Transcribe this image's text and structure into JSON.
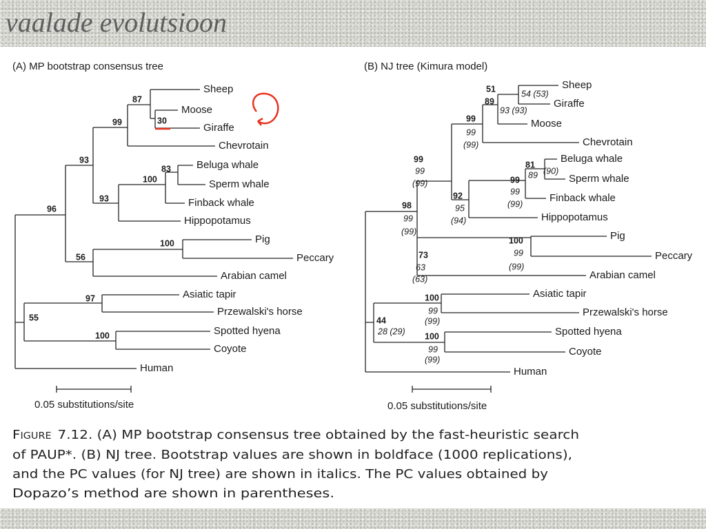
{
  "title": "vaalade evolutsioon",
  "panels": [
    {
      "heading": "(A) MP bootstrap consensus tree",
      "taxa": [
        "Sheep",
        "Moose",
        "Giraffe",
        "Chevrotain",
        "Beluga whale",
        "Sperm whale",
        "Finback whale",
        "Hippopotamus",
        "Pig",
        "Peccary",
        "Arabian camel",
        "Asiatic tapir",
        "Przewalski's horse",
        "Spotted hyena",
        "Coyote",
        "Human"
      ],
      "support": [
        "87",
        "30",
        "99",
        "93",
        "83",
        "100",
        "93",
        "96",
        "100",
        "56",
        "97",
        "100",
        "55"
      ],
      "scale": "0.05 substitutions/site"
    },
    {
      "heading": "(B) NJ tree (Kimura model)",
      "taxa": [
        "Sheep",
        "Giraffe",
        "Moose",
        "Chevrotain",
        "Beluga whale",
        "Sperm whale",
        "Finback whale",
        "Hippopotamus",
        "Pig",
        "Peccary",
        "Arabian camel",
        "Asiatic tapir",
        "Przewalski's horse",
        "Spotted hyena",
        "Coyote",
        "Human"
      ],
      "support": [
        "51",
        "54 (53)",
        "89",
        "93 (93)",
        "99",
        "99",
        "(99)",
        "99",
        "99",
        "(99)",
        "98",
        "99",
        "(99)",
        "81",
        "89",
        "(90)",
        "99",
        "99",
        "(99)",
        "92",
        "95",
        "(94)",
        "100",
        "99",
        "(99)",
        "73",
        "63",
        "(63)",
        "100",
        "99",
        "(99)",
        "44",
        "28 (29)",
        "100",
        "99",
        "(99)"
      ],
      "scale": "0.05 substitutions/site"
    }
  ],
  "caption": {
    "label": "Figure",
    "lines": [
      "7.12. (A) MP bootstrap consensus tree obtained by the fast-heuristic search",
      "of PAUP*. (B) NJ tree. Bootstrap values are shown in boldface (1000 replications),",
      "and the PC values (for NJ tree) are shown in italics. The PC values obtained by",
      "Dopazo’s method are shown in parentheses."
    ]
  }
}
